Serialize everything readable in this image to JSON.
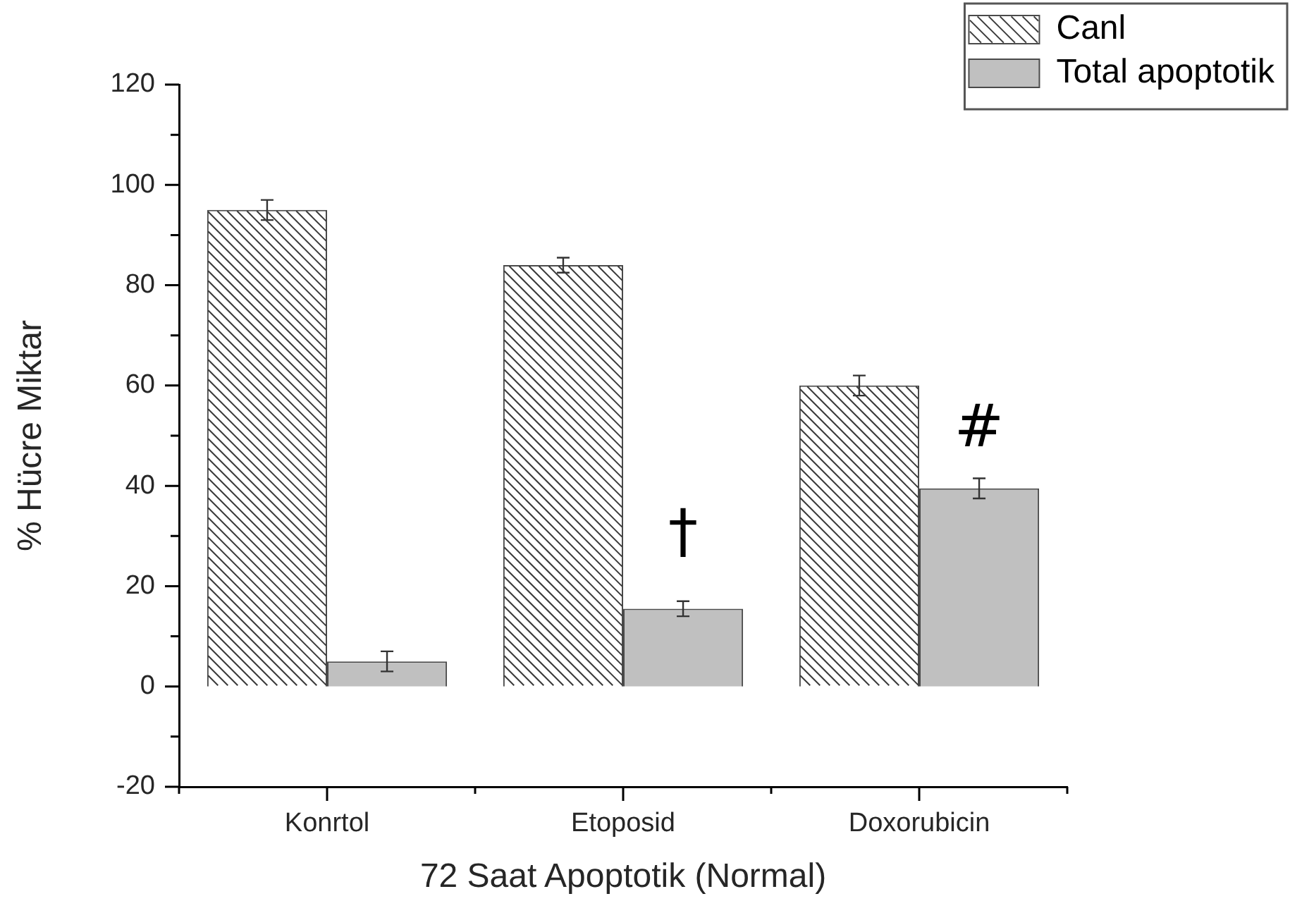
{
  "chart_data": {
    "type": "bar",
    "xlabel": "72 Saat Apoptotik (Normal)",
    "ylabel": "% Hücre Miktar",
    "categories": [
      "Konrtol",
      "Etoposid",
      "Doxorubicin"
    ],
    "series": [
      {
        "name": "Canl",
        "color": "#ffffff",
        "values": [
          95,
          84,
          60
        ],
        "errors": [
          2,
          1.5,
          2
        ]
      },
      {
        "name": "Total apoptotik",
        "color": "#c0c0c0",
        "values": [
          5,
          15.5,
          39.5
        ],
        "errors": [
          2,
          1.5,
          2
        ]
      }
    ],
    "ylim": [
      -20,
      120
    ],
    "yticks": [
      -20,
      {
        "value": -10,
        "label": null
      },
      0,
      {
        "value": 10,
        "label": null
      },
      20,
      {
        "value": 30,
        "label": null
      },
      40,
      {
        "value": 50,
        "label": null
      },
      60,
      {
        "value": 70,
        "label": null
      },
      80,
      {
        "value": 90,
        "label": null
      },
      100,
      {
        "value": 110,
        "label": null
      },
      120
    ],
    "annotations": [
      {
        "text": "†",
        "x": "Etoposid",
        "y": 30
      },
      {
        "text": "#",
        "x": "Doxorubicin",
        "y": 51
      }
    ],
    "grid": false,
    "legend": "top right"
  }
}
